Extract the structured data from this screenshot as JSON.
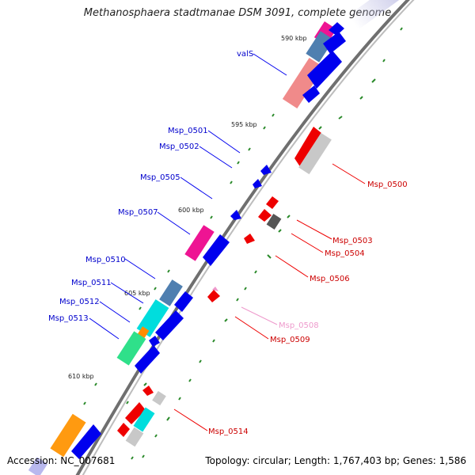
{
  "title": "Methanosphaera stadtmanae DSM 3091, complete genome",
  "footer": {
    "accession": "Accession: NC_007681",
    "summary": "Topology: circular; Length: 1,767,403 bp; Genes: 1,586"
  },
  "colors": {
    "backbone": "#808080",
    "forward_cds": "#0000ee",
    "reverse_cds": "#ee0000",
    "tick": "#2a8a2a",
    "label_forward": "#0000cc",
    "label_reverse": "#cc0000",
    "label_pink": "#ee99cc"
  },
  "kbp_markers": [
    "590 kbp",
    "595 kbp",
    "600 kbp",
    "605 kbp",
    "610 kbp"
  ],
  "gene_labels": {
    "forward": [
      "valS",
      "Msp_0501",
      "Msp_0502",
      "Msp_0505",
      "Msp_0507",
      "Msp_0510",
      "Msp_0511",
      "Msp_0512",
      "Msp_0513"
    ],
    "reverse": [
      "Msp_0500",
      "Msp_0503",
      "Msp_0504",
      "Msp_0506",
      "Msp_0508",
      "Msp_0509",
      "Msp_0514"
    ]
  }
}
